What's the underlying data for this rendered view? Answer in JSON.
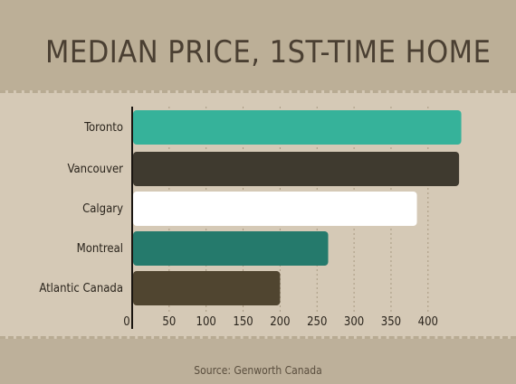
{
  "chart_data": {
    "type": "bar",
    "orientation": "horizontal",
    "title": "MEDIAN PRICE, 1ST-TIME HOME",
    "source": "Source: Genworth Canada",
    "categories": [
      "Toronto",
      "Vancouver",
      "Calgary",
      "Montreal",
      "Atlantic Canada"
    ],
    "values": [
      445,
      442,
      385,
      265,
      200
    ],
    "colors": [
      "#36b29a",
      "#3f3a2f",
      "#ffffff",
      "#257a6c",
      "#504530"
    ],
    "xlim": [
      0,
      450
    ],
    "xticks": [
      0,
      50,
      100,
      150,
      200,
      250,
      300,
      350,
      400
    ],
    "grid": true
  }
}
